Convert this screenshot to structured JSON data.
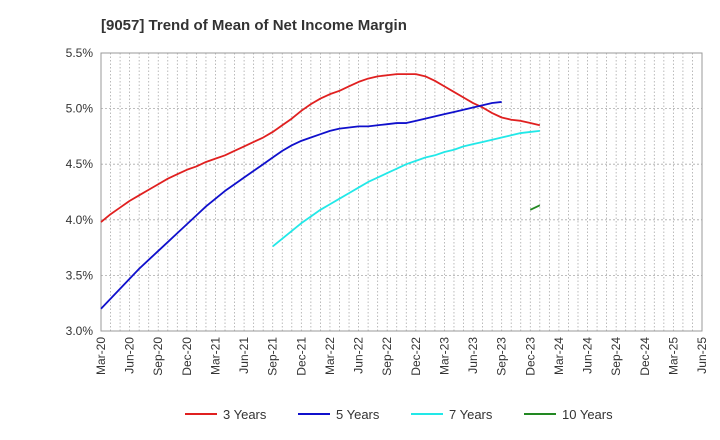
{
  "chart_data": {
    "type": "line",
    "title": "[9057]  Trend of Mean of Net Income Margin",
    "xlabel": "",
    "ylabel": "",
    "x_ticks": [
      "Mar-20",
      "Jun-20",
      "Sep-20",
      "Dec-20",
      "Mar-21",
      "Jun-21",
      "Sep-21",
      "Dec-21",
      "Mar-22",
      "Jun-22",
      "Sep-22",
      "Dec-22",
      "Mar-23",
      "Jun-23",
      "Sep-23",
      "Dec-23",
      "Mar-24",
      "Jun-24",
      "Sep-24",
      "Dec-24",
      "Mar-25",
      "Jun-25"
    ],
    "y_ticks": [
      "3.0%",
      "3.5%",
      "4.0%",
      "4.5%",
      "5.0%",
      "5.5%"
    ],
    "ylim": [
      3.0,
      5.5
    ],
    "grid": true,
    "legend_position": "bottom",
    "series": [
      {
        "name": "3 Years",
        "color": "#e02020",
        "start_index": 0,
        "values": [
          3.98,
          4.05,
          4.11,
          4.17,
          4.22,
          4.27,
          4.32,
          4.37,
          4.41,
          4.45,
          4.48,
          4.52,
          4.55,
          4.58,
          4.62,
          4.66,
          4.7,
          4.74,
          4.79,
          4.85,
          4.91,
          4.98,
          5.04,
          5.09,
          5.13,
          5.16,
          5.2,
          5.24,
          5.27,
          5.29,
          5.3,
          5.31,
          5.31,
          5.31,
          5.29,
          5.25,
          5.2,
          5.15,
          5.1,
          5.05,
          5.01,
          4.96,
          4.92,
          4.9,
          4.89,
          4.87,
          4.85
        ]
      },
      {
        "name": "5 Years",
        "color": "#1010cc",
        "start_index": 0,
        "values": [
          3.2,
          3.29,
          3.38,
          3.47,
          3.56,
          3.64,
          3.72,
          3.8,
          3.88,
          3.96,
          4.04,
          4.12,
          4.19,
          4.26,
          4.32,
          4.38,
          4.44,
          4.5,
          4.56,
          4.62,
          4.67,
          4.71,
          4.74,
          4.77,
          4.8,
          4.82,
          4.83,
          4.84,
          4.84,
          4.85,
          4.86,
          4.87,
          4.87,
          4.89,
          4.91,
          4.93,
          4.95,
          4.97,
          4.99,
          5.01,
          5.03,
          5.05,
          5.06
        ]
      },
      {
        "name": "7 Years",
        "color": "#22e8e8",
        "start_index": 18,
        "values": [
          3.76,
          3.83,
          3.9,
          3.97,
          4.03,
          4.09,
          4.14,
          4.19,
          4.24,
          4.29,
          4.34,
          4.38,
          4.42,
          4.46,
          4.5,
          4.53,
          4.56,
          4.58,
          4.61,
          4.63,
          4.66,
          4.68,
          4.7,
          4.72,
          4.74,
          4.76,
          4.78,
          4.79,
          4.8
        ]
      },
      {
        "name": "10 Years",
        "color": "#228822",
        "start_index": 45,
        "values": [
          4.09,
          4.13
        ]
      }
    ],
    "x_step_note": "monthly points starting Mar-20; index 0 = Mar-20, each index = 1 month"
  }
}
